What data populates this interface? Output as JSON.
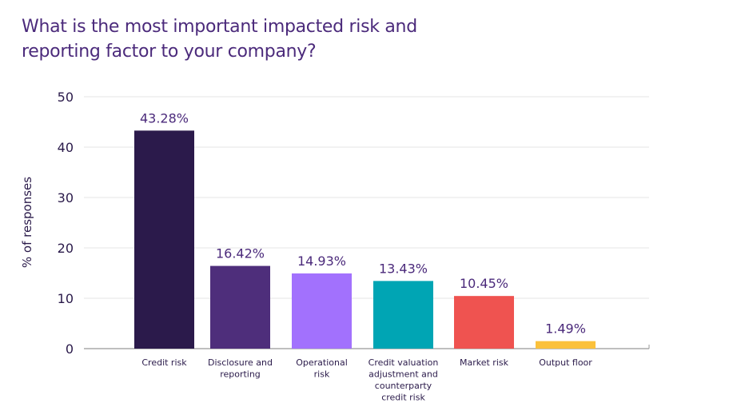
{
  "chart_data": {
    "type": "bar",
    "title": "What is the most important impacted risk and reporting factor to your company?",
    "ylabel": "% of responses",
    "xlabel": "",
    "ylim": [
      0,
      50
    ],
    "yticks": [
      0,
      10,
      20,
      30,
      40,
      50
    ],
    "grid": true,
    "categories": [
      [
        "Credit risk"
      ],
      [
        "Disclosure and",
        "reporting"
      ],
      [
        "Operational",
        "risk"
      ],
      [
        "Credit valuation",
        "adjustment and",
        "counterparty",
        "credit risk"
      ],
      [
        "Market risk"
      ],
      [
        "Output floor"
      ]
    ],
    "values": [
      43.28,
      16.42,
      14.93,
      13.43,
      10.45,
      1.49
    ],
    "data_labels": [
      "43.28%",
      "16.42%",
      "14.93%",
      "13.43%",
      "10.45%",
      "1.49%"
    ],
    "colors": [
      "#2b1a4b",
      "#4e2e7b",
      "#a271fd",
      "#00a5b4",
      "#ef5350",
      "#fbc13b"
    ]
  }
}
